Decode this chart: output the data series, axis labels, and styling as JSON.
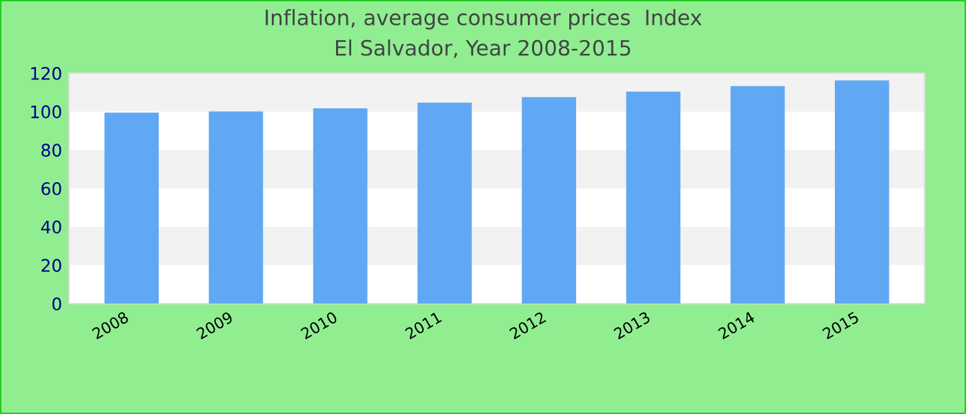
{
  "chart_data": {
    "type": "bar",
    "title": "Inflation, average consumer prices  Index",
    "subtitle": "El Salvador, Year 2008-2015",
    "categories": [
      "2008",
      "2009",
      "2010",
      "2011",
      "2012",
      "2013",
      "2014",
      "2015"
    ],
    "values": [
      99.4,
      100.1,
      101.7,
      104.6,
      107.5,
      110.4,
      113.3,
      116.2
    ],
    "color": "#60a8f4",
    "ylim": [
      0,
      120
    ],
    "yticks": [
      0,
      20,
      40,
      60,
      80,
      100,
      120
    ],
    "bands": [
      {
        "axis": "y",
        "from": 20,
        "to": 40,
        "color": "#f2f2f2"
      },
      {
        "axis": "y",
        "from": 60,
        "to": 80,
        "color": "#f2f2f2"
      },
      {
        "axis": "y",
        "from": 100,
        "to": 120,
        "color": "#f2f2f2"
      }
    ]
  }
}
